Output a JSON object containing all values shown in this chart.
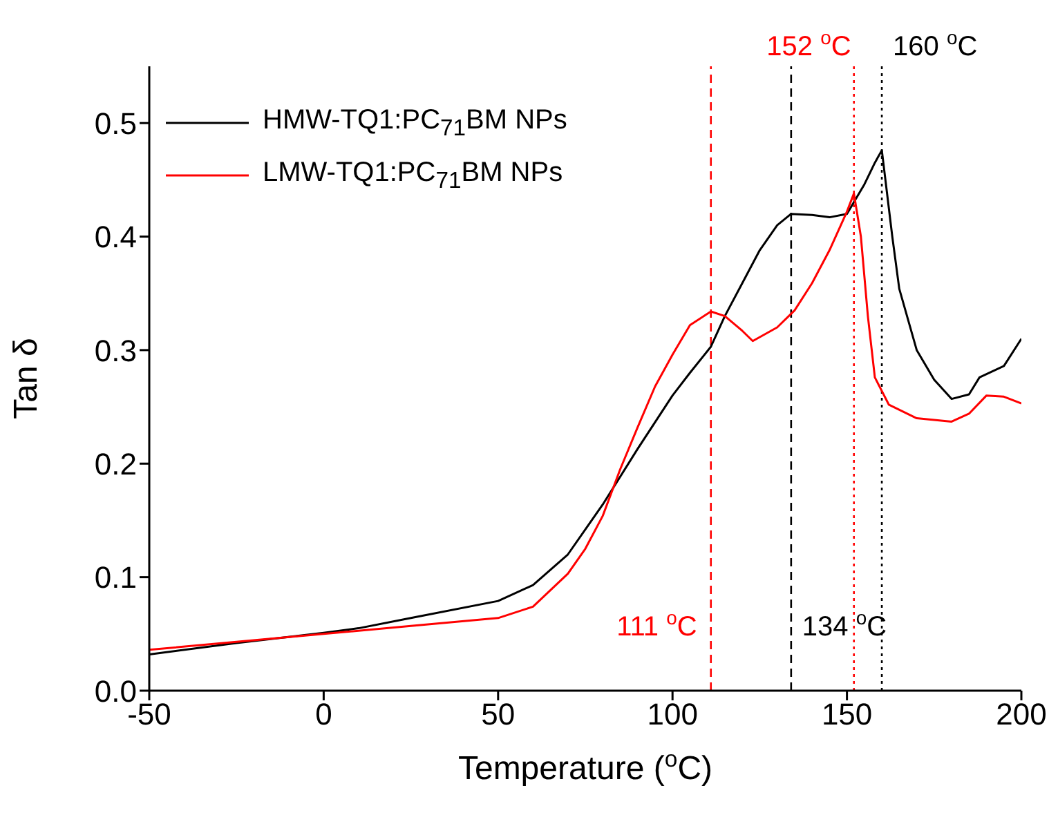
{
  "chart_data": {
    "type": "line",
    "xlabel": "Temperature ($^{o}$C)",
    "ylabel": "Tan δ",
    "xlim": [
      -50,
      200
    ],
    "xticks": [
      -50,
      0,
      50,
      100,
      150,
      200
    ],
    "ylim": [
      0,
      0.55
    ],
    "yticks": [
      {
        "value": 0,
        "label": "0.0"
      },
      0.1,
      0.2,
      0.3,
      0.4,
      0.5
    ],
    "grid": false,
    "legend": "top left",
    "marker": "none",
    "series": [
      {
        "name": "HMW-TQ1:PC$_{71}$BM NPs",
        "color": "#000000",
        "x": [
          -50,
          -25,
          0,
          10,
          25,
          50,
          60,
          70,
          80,
          90,
          100,
          105,
          111,
          115,
          120,
          125,
          130,
          134,
          140,
          145,
          150,
          155,
          158,
          160,
          163,
          165,
          170,
          175,
          180,
          185,
          188,
          195,
          200
        ],
        "values": [
          0.032,
          0.042,
          0.051,
          0.055,
          0.064,
          0.079,
          0.093,
          0.12,
          0.164,
          0.213,
          0.26,
          0.28,
          0.303,
          0.33,
          0.359,
          0.388,
          0.41,
          0.42,
          0.419,
          0.417,
          0.42,
          0.446,
          0.465,
          0.476,
          0.4,
          0.354,
          0.3,
          0.274,
          0.257,
          0.261,
          0.276,
          0.286,
          0.31
        ]
      },
      {
        "name": "LMW-TQ1:PC$_{71}$BM NPs",
        "color": "#ff0000",
        "x": [
          -50,
          -25,
          0,
          25,
          50,
          60,
          70,
          75,
          80,
          85,
          90,
          95,
          100,
          105,
          111,
          115,
          120,
          123,
          130,
          135,
          140,
          145,
          150,
          152,
          154,
          156,
          158,
          162,
          170,
          180,
          185,
          190,
          195,
          200
        ],
        "values": [
          0.036,
          0.043,
          0.05,
          0.057,
          0.064,
          0.074,
          0.103,
          0.125,
          0.154,
          0.195,
          0.232,
          0.268,
          0.296,
          0.322,
          0.334,
          0.33,
          0.317,
          0.308,
          0.32,
          0.335,
          0.359,
          0.388,
          0.422,
          0.438,
          0.4,
          0.33,
          0.276,
          0.252,
          0.24,
          0.237,
          0.244,
          0.26,
          0.259,
          0.253
        ]
      }
    ],
    "ref_lines": [
      {
        "axis": "x",
        "value": 111,
        "label": "111 $^{o}$C",
        "color": "#ff0000",
        "line_style": "dashed"
      },
      {
        "axis": "x",
        "value": 134,
        "label": "134 $^{o}$C",
        "color": "#000000",
        "line_style": "dashed"
      },
      {
        "axis": "x",
        "value": 152,
        "label": "152 $^{o}$C",
        "color": "#ff0000",
        "line_style": "dotted"
      },
      {
        "axis": "x",
        "value": 160,
        "label": "160 $^{o}$C",
        "color": "#000000",
        "line_style": "dotted"
      }
    ]
  }
}
